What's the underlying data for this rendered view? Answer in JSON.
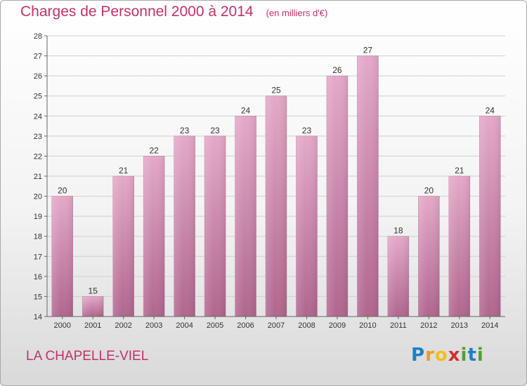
{
  "title": "Charges de Personnel 2000 à 2014",
  "unit_note": "(en milliers d'€)",
  "commune": "LA CHAPELLE-VIEL",
  "logo_text": "Proxiti",
  "colors": {
    "bar": "#d48aae",
    "title": "#c2306a"
  },
  "chart_data": {
    "type": "bar",
    "title": "Charges de Personnel 2000 à 2014",
    "xlabel": "",
    "ylabel": "",
    "categories": [
      "2000",
      "2001",
      "2002",
      "2003",
      "2004",
      "2005",
      "2006",
      "2007",
      "2008",
      "2009",
      "2010",
      "2011",
      "2012",
      "2013",
      "2014"
    ],
    "values": [
      20,
      15,
      21,
      22,
      23,
      23,
      24,
      25,
      23,
      26,
      27,
      18,
      20,
      21,
      24
    ],
    "ylim": [
      14,
      28
    ],
    "yticks": [
      14,
      15,
      16,
      17,
      18,
      19,
      20,
      21,
      22,
      23,
      24,
      25,
      26,
      27,
      28
    ],
    "grid": true,
    "legend": "none"
  }
}
